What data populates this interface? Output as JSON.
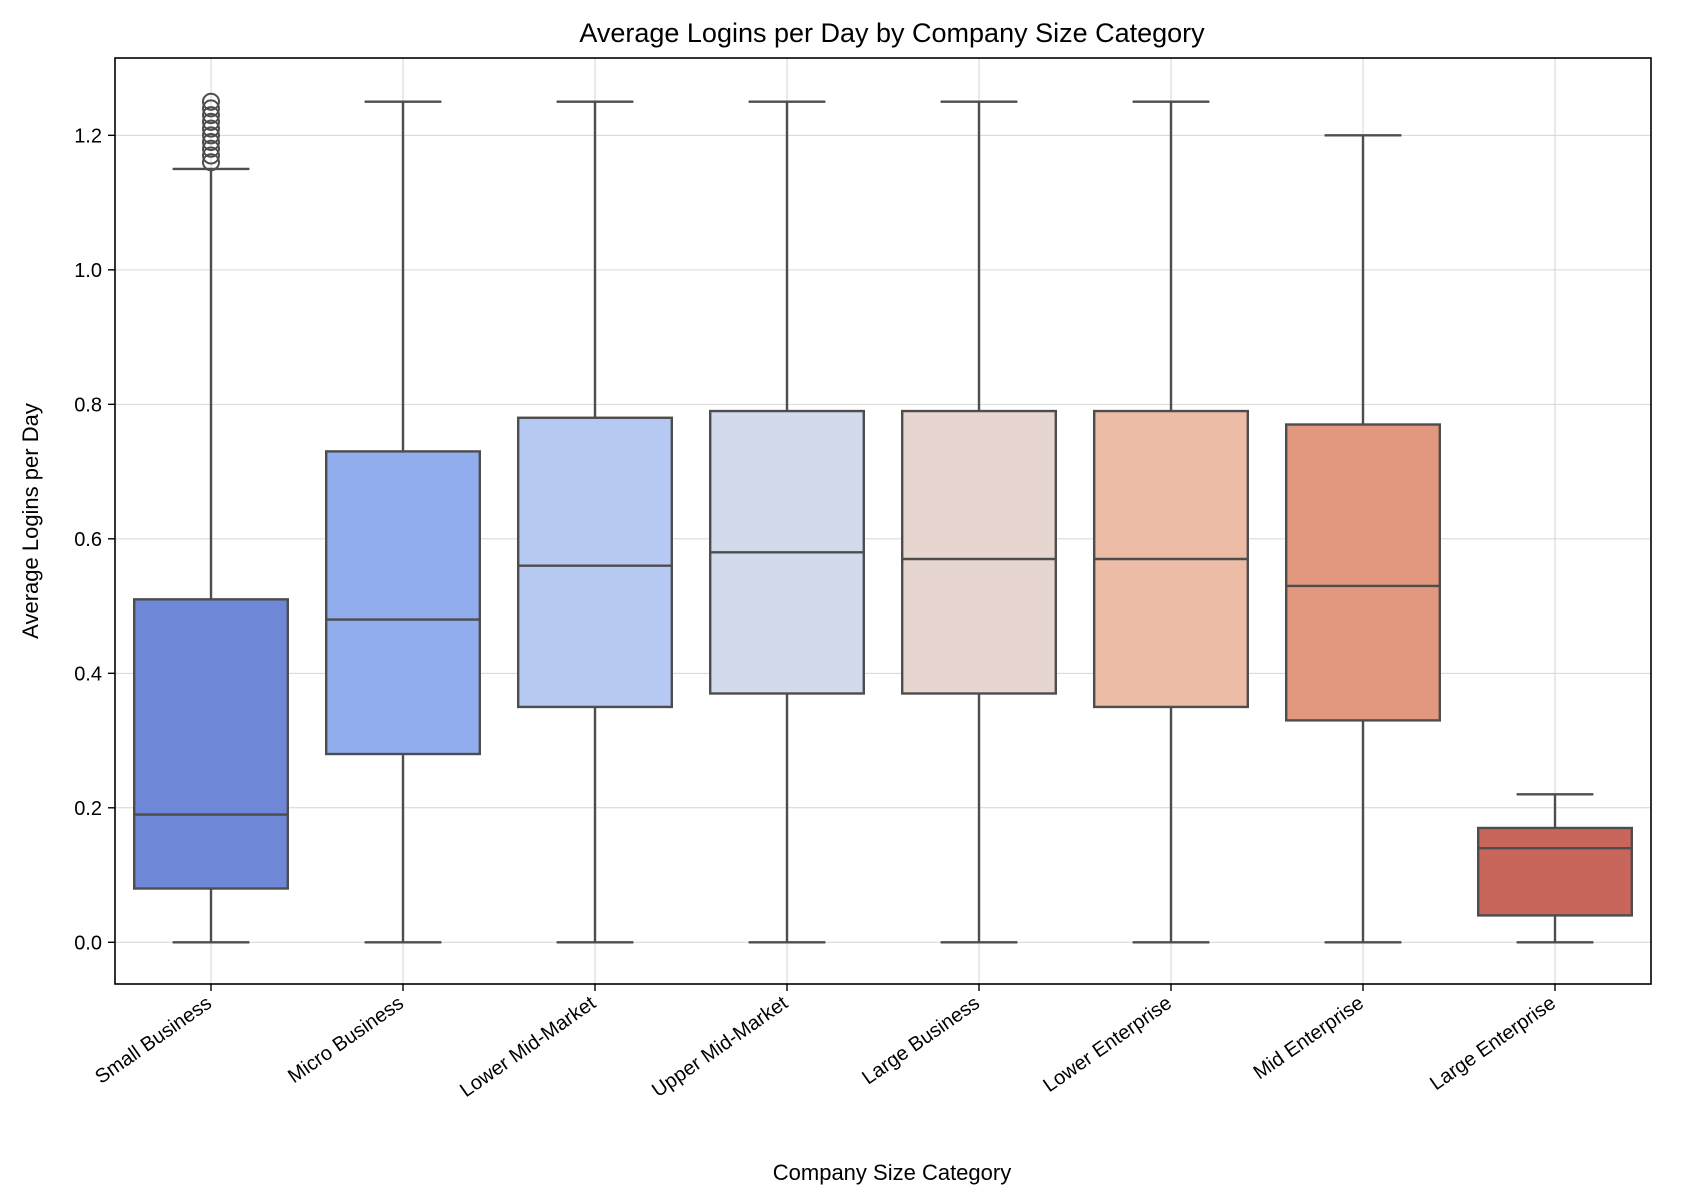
{
  "chart_data": {
    "type": "box",
    "title": "Average Logins per Day by Company Size Category",
    "xlabel": "Company Size Category",
    "ylabel": "Average Logins per Day",
    "ylim": [
      -0.062,
      1.315
    ],
    "yticks": [
      0.0,
      0.2,
      0.4,
      0.6,
      0.8,
      1.0,
      1.2
    ],
    "ytick_labels": [
      "0.0",
      "0.2",
      "0.4",
      "0.6",
      "0.8",
      "1.0",
      "1.2"
    ],
    "grid": true,
    "categories": [
      "Small Business",
      "Micro Business",
      "Lower Mid-Market",
      "Upper Mid-Market",
      "Large Business",
      "Lower Enterprise",
      "Mid Enterprise",
      "Large Enterprise"
    ],
    "boxes": [
      {
        "category": "Small Business",
        "whisker_low": 0.0,
        "q1": 0.08,
        "median": 0.19,
        "q3": 0.51,
        "whisker_high": 1.15,
        "fliers": [
          1.16,
          1.17,
          1.18,
          1.19,
          1.2,
          1.21,
          1.22,
          1.23,
          1.24,
          1.25
        ],
        "color": "#6f87d7"
      },
      {
        "category": "Micro Business",
        "whisker_low": 0.0,
        "q1": 0.28,
        "median": 0.48,
        "q3": 0.73,
        "whisker_high": 1.25,
        "fliers": [],
        "color": "#91adee"
      },
      {
        "category": "Lower Mid-Market",
        "whisker_low": 0.0,
        "q1": 0.35,
        "median": 0.56,
        "q3": 0.78,
        "whisker_high": 1.25,
        "fliers": [],
        "color": "#b6c9f3"
      },
      {
        "category": "Upper Mid-Market",
        "whisker_low": 0.0,
        "q1": 0.37,
        "median": 0.58,
        "q3": 0.79,
        "whisker_high": 1.25,
        "fliers": [],
        "color": "#d2dbeb"
      },
      {
        "category": "Large Business",
        "whisker_low": 0.0,
        "q1": 0.37,
        "median": 0.57,
        "q3": 0.79,
        "whisker_high": 1.25,
        "fliers": [],
        "color": "#e7d6cf"
      },
      {
        "category": "Lower Enterprise",
        "whisker_low": 0.0,
        "q1": 0.35,
        "median": 0.57,
        "q3": 0.79,
        "whisker_high": 1.25,
        "fliers": [],
        "color": "#edbca6"
      },
      {
        "category": "Mid Enterprise",
        "whisker_low": 0.0,
        "q1": 0.33,
        "median": 0.53,
        "q3": 0.77,
        "whisker_high": 1.2,
        "fliers": [],
        "color": "#e2977f"
      },
      {
        "category": "Large Enterprise",
        "whisker_low": 0.0,
        "q1": 0.04,
        "median": 0.14,
        "q3": 0.17,
        "whisker_high": 0.22,
        "fliers": [],
        "color": "#c8665b"
      }
    ]
  }
}
